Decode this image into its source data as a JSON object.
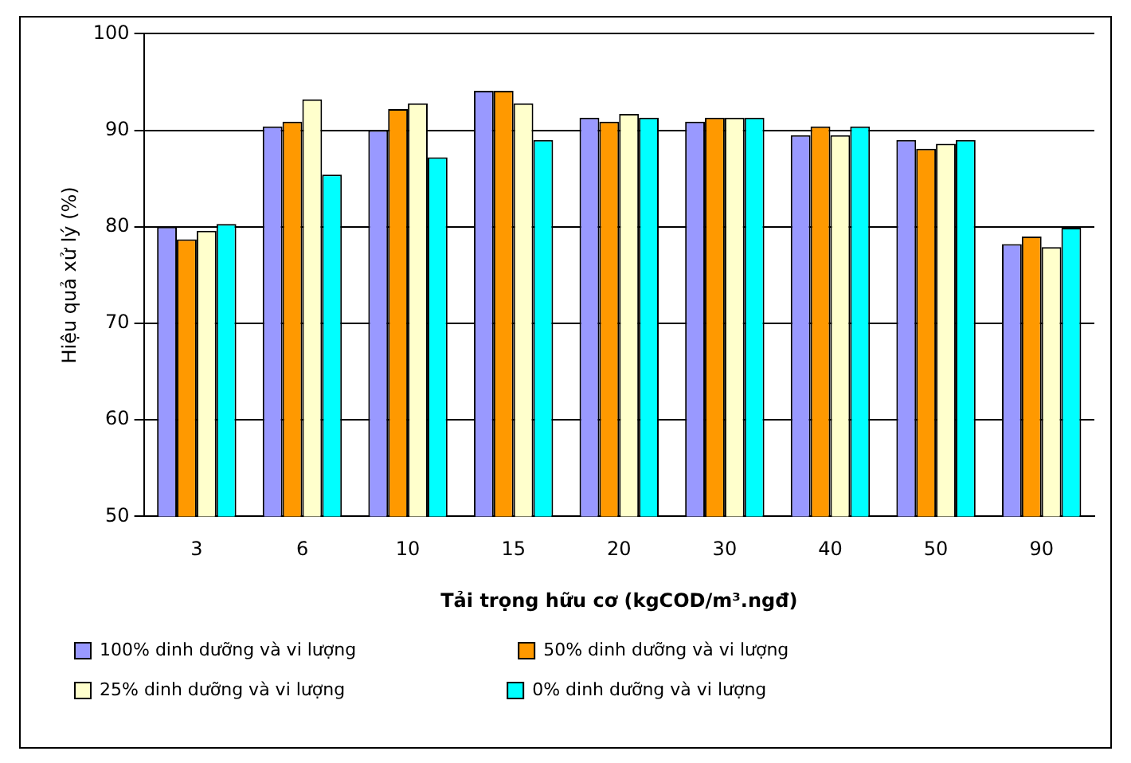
{
  "chart_data": {
    "type": "bar",
    "xlabel": "Tải trọng hữu cơ (kgCOD/m³.ngđ)",
    "ylabel": "Hiệu quả xử lý (%)",
    "categories": [
      "3",
      "6",
      "10",
      "15",
      "20",
      "30",
      "40",
      "50",
      "90"
    ],
    "series": [
      {
        "name": "100% dinh dưỡng và vi lượng",
        "color": "#9999ff",
        "values": [
          80,
          90.4,
          90,
          94.1,
          91.3,
          90.9,
          89.5,
          89,
          78.2
        ]
      },
      {
        "name": "50% dinh dưỡng và vi lượng",
        "color": "#ff9900",
        "values": [
          78.7,
          90.9,
          92.2,
          94.1,
          90.9,
          91.3,
          90.4,
          88.1,
          79
        ]
      },
      {
        "name": "25% dinh dưỡng và vi lượng",
        "color": "#ffffcc",
        "values": [
          79.6,
          93.2,
          92.8,
          92.8,
          91.7,
          91.3,
          89.5,
          88.6,
          77.9
        ]
      },
      {
        "name": "0% dinh dưỡng và vi lượng",
        "color": "#00ffff",
        "values": [
          80.3,
          85.4,
          87.2,
          89,
          91.3,
          91.3,
          90.4,
          89,
          79.9
        ]
      }
    ],
    "ylim": [
      50,
      100
    ],
    "yticks": [
      50,
      60,
      70,
      80,
      90,
      100
    ],
    "grid": "y",
    "legend": "bottom"
  }
}
